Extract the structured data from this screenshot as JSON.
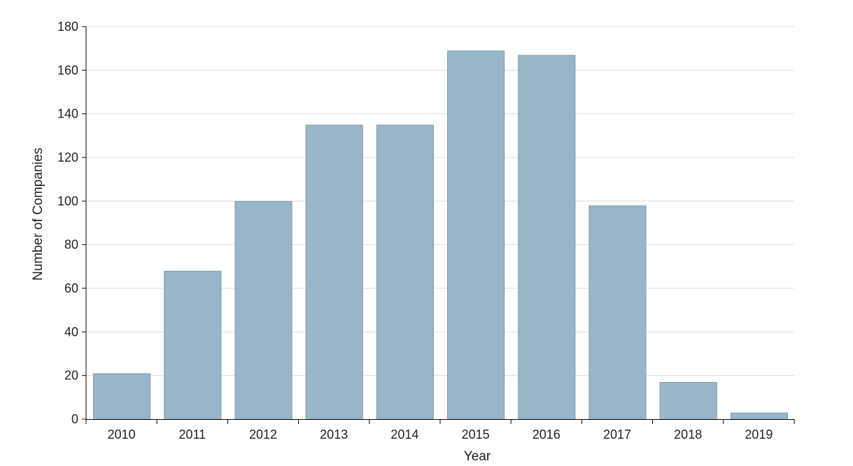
{
  "chart_data": {
    "type": "bar",
    "categories": [
      "2010",
      "2011",
      "2012",
      "2013",
      "2014",
      "2015",
      "2016",
      "2017",
      "2018",
      "2019"
    ],
    "values": [
      21,
      68,
      100,
      135,
      135,
      169,
      167,
      98,
      17,
      3
    ],
    "xlabel": "Year",
    "ylabel": "Number of Companies",
    "ylim": [
      0,
      180
    ],
    "yticks": [
      0,
      20,
      40,
      60,
      80,
      100,
      120,
      140,
      160,
      180
    ],
    "grid": true,
    "legend": "none",
    "colors": {
      "bar_fill": "#98b6c8",
      "bar_stroke": "#7f9eb0",
      "grid": "#dddddd",
      "axis": "#000000"
    }
  }
}
